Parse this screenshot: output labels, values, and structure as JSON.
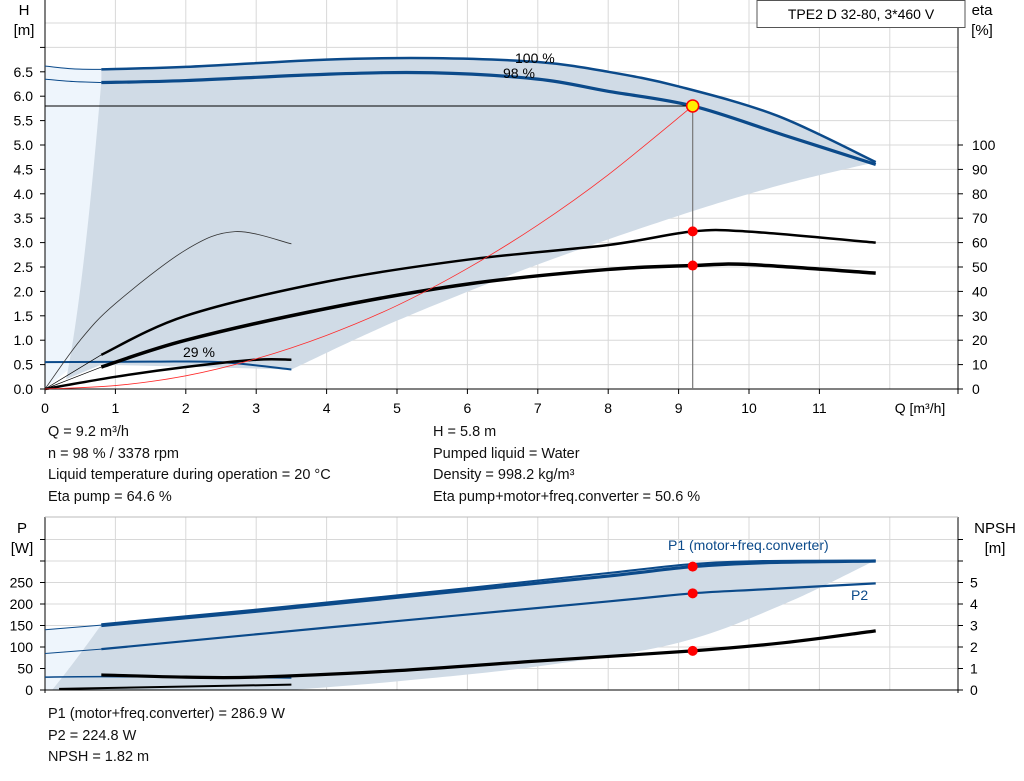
{
  "title_box": "TPE2 D 32-80, 3*460 V",
  "colors": {
    "curve_blue": "#0b4a8a",
    "region": "#d0dbe6",
    "region_light": "#eef5fc",
    "system_curve": "#ff2a2a",
    "point": "#ff0000",
    "duty_point_fill": "#ffee00"
  },
  "chart_data": [
    {
      "type": "line",
      "id": "head-efficiency",
      "xlabel": "Q [m³/h]",
      "ylabel_left": [
        "H",
        "[m]"
      ],
      "ylabel_right": [
        "eta",
        "[%]"
      ],
      "xlim": [
        0,
        12.9
      ],
      "ylim_left": [
        0,
        8
      ],
      "ylim_right_ticks": [
        0,
        100
      ],
      "xticks": [
        "0",
        "1",
        "2",
        "3",
        "4",
        "5",
        "6",
        "7",
        "8",
        "9",
        "10",
        "11"
      ],
      "yticks_left": [
        "0.0",
        "0.5",
        "1.0",
        "1.5",
        "2.0",
        "2.5",
        "3.0",
        "3.5",
        "4.0",
        "4.5",
        "5.0",
        "5.5",
        "6.0",
        "6.5"
      ],
      "yticks_right": [
        "0",
        "10",
        "20",
        "30",
        "40",
        "50",
        "60",
        "70",
        "80",
        "90",
        "100"
      ],
      "grid": true,
      "annotations": [
        "100 %",
        "98 %",
        "29 %"
      ],
      "series": [
        {
          "axis": "left",
          "x": [
            0.8,
            2,
            4,
            5.5,
            7,
            8,
            9,
            10.4,
            11.8
          ],
          "y": [
            6.55,
            6.6,
            6.75,
            6.78,
            6.7,
            6.5,
            6.2,
            5.6,
            4.65
          ]
        },
        {
          "axis": "left",
          "x": [
            0.8,
            2,
            4,
            5.5,
            7,
            8,
            9.2,
            10.5,
            11.8
          ],
          "y": [
            6.28,
            6.32,
            6.45,
            6.48,
            6.35,
            6.1,
            5.8,
            5.2,
            4.6
          ]
        },
        {
          "axis": "left",
          "x": [
            0,
            1.5,
            2.5,
            3.5
          ],
          "y": [
            0.55,
            0.56,
            0.55,
            0.4
          ]
        },
        {
          "axis": "right",
          "x": [
            0,
            0.5,
            1,
            2,
            2.7,
            3.5
          ],
          "y": [
            0,
            20,
            35,
            57,
            64.5,
            59.5
          ]
        },
        {
          "axis": "right",
          "x": [
            0.8,
            2,
            4,
            6,
            8,
            9.2,
            10,
            11.8
          ],
          "y": [
            14,
            30,
            44,
            53,
            59,
            64.6,
            64.5,
            60
          ]
        },
        {
          "axis": "right",
          "x": [
            0.8,
            2,
            4,
            6,
            8,
            9.2,
            10,
            11.8
          ],
          "y": [
            9,
            20,
            33,
            43,
            49,
            50.6,
            51,
            47.5
          ]
        },
        {
          "axis": "right",
          "x": [
            0,
            1,
            2,
            3,
            3.5
          ],
          "y": [
            0,
            5,
            9,
            12,
            12
          ]
        },
        {
          "axis": "left",
          "x": [
            0,
            1,
            2,
            3,
            4,
            5,
            6,
            7,
            8,
            9.2
          ],
          "y": [
            0,
            0.07,
            0.27,
            0.62,
            1.1,
            1.71,
            2.47,
            3.36,
            4.39,
            5.8
          ]
        }
      ],
      "duty_point": {
        "Q": 9.2,
        "H": 5.8,
        "eta_pump": 64.6,
        "eta_total": 50.6
      }
    },
    {
      "type": "line",
      "id": "power-npsh",
      "ylabel_left": [
        "P",
        "[W]"
      ],
      "ylabel_right": [
        "NPSH",
        "[m]"
      ],
      "xlim": [
        0,
        12.9
      ],
      "ylim_left": [
        0,
        350
      ],
      "yticks_left": [
        "0",
        "50",
        "100",
        "150",
        "200",
        "250"
      ],
      "yticks_right": [
        "0",
        "1",
        "2",
        "3",
        "4",
        "5"
      ],
      "grid": true,
      "series": [
        {
          "name": "P1 (motor+freq.converter)",
          "axis": "left",
          "x": [
            0.8,
            3,
            6,
            8,
            9.2,
            10.2,
            11.8
          ],
          "y": [
            150,
            183,
            232,
            265,
            287,
            296,
            300
          ]
        },
        {
          "axis": "left",
          "x": [
            0.8,
            3,
            6,
            8,
            9.2,
            10.2,
            11.8
          ],
          "y": [
            153,
            187,
            237,
            272,
            293,
            300,
            301
          ]
        },
        {
          "name": "P2",
          "axis": "left",
          "x": [
            0.8,
            4,
            8,
            9.2,
            10.2,
            11.8
          ],
          "y": [
            95,
            145,
            206,
            224.8,
            234,
            248
          ]
        },
        {
          "axis": "right",
          "x": [
            0.8,
            2,
            3,
            5,
            7,
            9.2,
            10.5,
            11.8
          ],
          "y": [
            0.7,
            0.6,
            0.6,
            0.9,
            1.35,
            1.82,
            2.2,
            2.75
          ]
        }
      ],
      "duty_point": {
        "Q": 9.2,
        "P1": 286.9,
        "P2": 224.8,
        "NPSH": 1.82
      }
    }
  ],
  "info_upper_left": [
    "Q = 9.2 m³/h",
    "n = 98 % / 3378 rpm",
    "Liquid temperature during operation = 20 °C",
    "Eta pump = 64.6 %"
  ],
  "info_upper_right": [
    "H = 5.8 m",
    "Pumped liquid = Water",
    "Density = 998.2 kg/m³",
    "Eta pump+motor+freq.converter = 50.6 %"
  ],
  "info_lower": [
    "P1 (motor+freq.converter) = 286.9 W",
    "P2 = 224.8 W",
    "NPSH = 1.82 m"
  ]
}
